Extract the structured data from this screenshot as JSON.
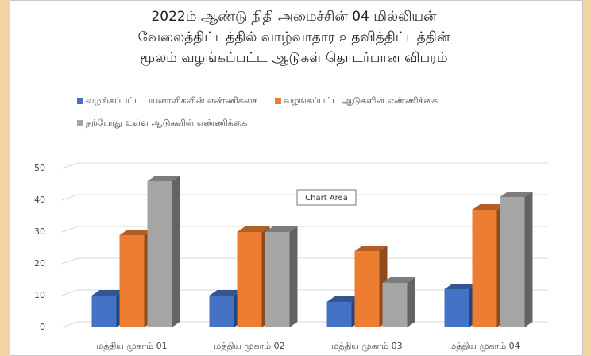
{
  "chart_data": {
    "type": "bar",
    "title": "2022ம் ஆண்டு நிதி அமைச்சின் 04 மில்லியன் வேலைத்திட்டத்தில் வாழ்வாதார உதவித்திட்டத்தின் மூலம் வழங்கப்பட்ட ஆடுகள் தொடர்பான விபரம்",
    "categories": [
      "மத்திய முகாம் 01",
      "மத்திய முகாம் 02",
      "மத்திய முகாம் 03",
      "மத்திய முகாம் 04"
    ],
    "series": [
      {
        "name": "வழங்கப்பட்ட பயனாளிகளின் எண்ணிக்கை",
        "color": "#4472c4",
        "values": [
          10,
          10,
          8,
          12
        ]
      },
      {
        "name": "வழங்கப்பட்ட ஆடுகளின் எண்ணிக்கை",
        "color": "#ed7d31",
        "values": [
          29,
          30,
          24,
          37
        ]
      },
      {
        "name": "தற்போது உள்ள ஆடுகளின் எண்ணிக்கை",
        "color": "#a5a5a5",
        "values": [
          46,
          30,
          14,
          41
        ]
      }
    ],
    "ylim": [
      0,
      50
    ],
    "yticks": [
      0,
      10,
      20,
      30,
      40,
      50
    ],
    "grid": true,
    "legend": "top",
    "tooltip": "Chart Area"
  }
}
